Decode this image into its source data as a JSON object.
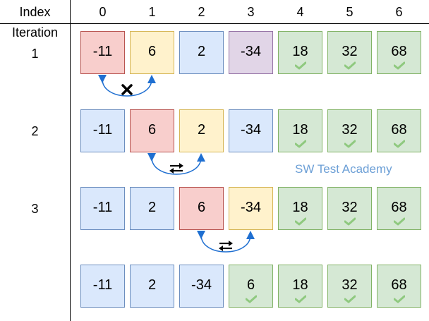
{
  "header": {
    "index_label": "Index",
    "iteration_label": "Iteration",
    "indices": [
      "0",
      "1",
      "2",
      "3",
      "4",
      "5",
      "6"
    ]
  },
  "rows": [
    {
      "label": "1",
      "values": [
        "-11",
        "6",
        "2",
        "-34",
        "18",
        "32",
        "68"
      ],
      "states": [
        "compare",
        "compare2",
        "normal",
        "purple",
        "sorted",
        "sorted",
        "sorted"
      ],
      "action": "no-swap"
    },
    {
      "label": "2",
      "values": [
        "-11",
        "6",
        "2",
        "-34",
        "18",
        "32",
        "68"
      ],
      "states": [
        "normal",
        "compare",
        "compare2",
        "normal",
        "sorted",
        "sorted",
        "sorted"
      ],
      "action": "swap"
    },
    {
      "label": "3",
      "values": [
        "-11",
        "2",
        "6",
        "-34",
        "18",
        "32",
        "68"
      ],
      "states": [
        "normal",
        "normal",
        "compare",
        "compare2",
        "sorted",
        "sorted",
        "sorted"
      ],
      "action": "swap"
    },
    {
      "label": "",
      "values": [
        "-11",
        "2",
        "-34",
        "6",
        "18",
        "32",
        "68"
      ],
      "states": [
        "normal",
        "normal",
        "normal",
        "sorted",
        "sorted",
        "sorted",
        "sorted"
      ],
      "action": "none"
    }
  ],
  "watermark": "SW Test Academy",
  "colors": {
    "normal_fill": "#dae8fc",
    "normal_border": "#6c8ebf",
    "compare_fill": "#f8cecc",
    "compare_border": "#b85450",
    "compare2_fill": "#fff2cc",
    "compare2_border": "#d6b656",
    "purple_fill": "#e1d5e7",
    "purple_border": "#9673a6",
    "sorted_fill": "#d5e8d4",
    "sorted_border": "#82b366",
    "check": "#8fc97f",
    "arrow": "#1f6fd1"
  }
}
